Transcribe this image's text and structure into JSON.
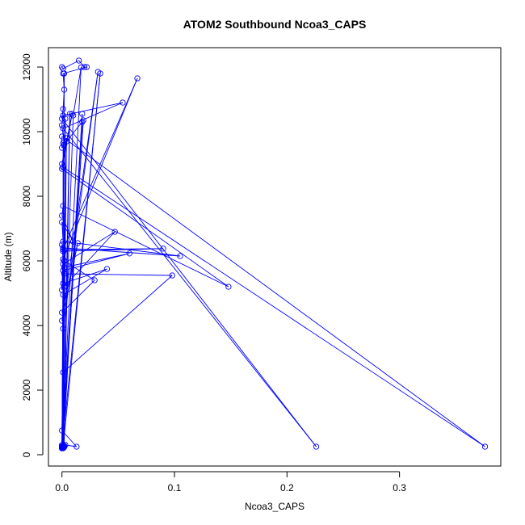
{
  "chart_data": {
    "type": "line",
    "title": "ATOM2 Southbound Ncoa3_CAPS",
    "xlabel": "Ncoa3_CAPS",
    "ylabel": "Altitude (m)",
    "xlim": [
      -0.012,
      0.39
    ],
    "ylim": [
      -350,
      12600
    ],
    "xticks": [
      0,
      0.1,
      0.2,
      0.3
    ],
    "xtick_labels": [
      "0.0",
      "0.1",
      "0.2",
      "0.3"
    ],
    "yticks": [
      0,
      2000,
      4000,
      6000,
      8000,
      10000,
      12000
    ],
    "ytick_labels": [
      "0",
      "2000",
      "4000",
      "6000",
      "8000",
      "10000",
      "12000"
    ],
    "grid": false,
    "legend": "none",
    "series": [
      {
        "color": "#0000ff",
        "marker": "open-circle",
        "x": [
          0,
          0.001,
          0.015,
          0.02,
          0.022,
          0.001,
          0.002,
          0.001,
          0.0,
          0.226,
          0.001,
          0.054,
          0.001,
          0.0,
          0.002,
          0.0,
          0.0,
          0.376,
          0.001,
          0.0,
          0.009,
          0.0,
          0.148,
          0.001,
          0.0,
          0.01,
          0.0,
          0.001,
          0.105,
          0.001,
          0.0,
          0.002,
          0.0,
          0.001,
          0.09,
          0.001,
          0.067,
          0.001,
          0.002,
          0.06,
          0.001,
          0.001,
          0.047,
          0.002,
          0.001,
          0.04,
          0.001,
          0.002,
          0.029,
          0.0,
          0.014,
          0.0,
          0.032,
          0.001,
          0.002,
          0.098,
          0.001,
          0.0,
          0.013,
          0.003,
          0.002,
          0.007,
          0.001,
          0.004,
          0.0,
          0.018,
          0.001,
          0.0,
          0.003,
          0.001,
          0.0,
          0.019,
          0.0,
          0.01,
          0.017,
          0.0,
          0.002,
          0.0,
          0.001,
          0.001,
          0.004,
          0.018,
          0.0,
          0.001,
          0.002,
          0.0,
          0.034,
          0.001,
          0.0,
          0.0
        ],
        "y": [
          12000,
          11950,
          12200,
          12000,
          12000,
          11800,
          11300,
          10700,
          10400,
          250,
          10100,
          10900,
          10500,
          10200,
          9600,
          9500,
          9850,
          250,
          8900,
          9000,
          10550,
          8850,
          5200,
          7700,
          7400,
          6600,
          7200,
          6600,
          6150,
          6400,
          5100,
          5600,
          6500,
          6300,
          6380,
          6350,
          11650,
          6050,
          5800,
          6230,
          5700,
          5900,
          6900,
          5200,
          4950,
          5750,
          5300,
          6000,
          5400,
          4400,
          6550,
          4150,
          11850,
          3900,
          5600,
          5550,
          2550,
          750,
          250,
          300,
          280,
          10550,
          240,
          9800,
          220,
          10550,
          200,
          250,
          10400,
          270,
          200,
          10350,
          230,
          10500,
          11990,
          260,
          11800,
          300,
          280,
          9650,
          9700,
          10300,
          220,
          250,
          230,
          200,
          11800,
          230,
          260,
          250
        ]
      }
    ]
  }
}
